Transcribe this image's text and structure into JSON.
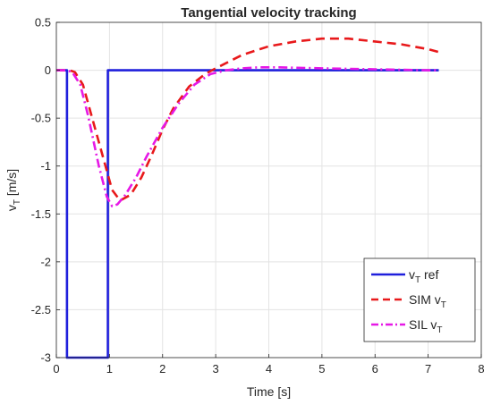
{
  "chart_data": {
    "type": "line",
    "title": "Tangential velocity tracking",
    "xlabel": "Time [s]",
    "ylabel": {
      "main": "v",
      "sub": "T",
      "unit": " [m/s]"
    },
    "xlim": [
      0,
      8
    ],
    "ylim": [
      -3,
      0.5
    ],
    "xticks": [
      0,
      1,
      2,
      3,
      4,
      5,
      6,
      7,
      8
    ],
    "yticks": [
      0.5,
      0,
      -0.5,
      -1,
      -1.5,
      -2,
      -2.5,
      -3
    ],
    "xtick_labels": [
      "0",
      "1",
      "2",
      "3",
      "4",
      "5",
      "6",
      "7",
      "8"
    ],
    "ytick_labels": [
      "0.5",
      "0",
      "-0.5",
      "-1",
      "-1.5",
      "-2",
      "-2.5",
      "-3"
    ],
    "grid": true,
    "legend_position": "bottom-right",
    "series": [
      {
        "key": "ref",
        "legend": {
          "main": "v",
          "sub": "T",
          "suffix": " ref"
        },
        "color": "#1f1fdc",
        "style": "solid",
        "x": [
          0,
          0.2,
          0.2,
          0.97,
          0.97,
          7.2
        ],
        "y": [
          0,
          0,
          -3,
          -3,
          0,
          0
        ]
      },
      {
        "key": "sim",
        "legend": {
          "main": "SIM v",
          "sub": "T",
          "suffix": ""
        },
        "color": "#e8191b",
        "style": "dashed",
        "x": [
          0,
          0.25,
          0.35,
          0.5,
          0.7,
          0.9,
          1.05,
          1.2,
          1.4,
          1.6,
          1.8,
          2.0,
          2.2,
          2.5,
          2.8,
          3.0,
          3.5,
          4.0,
          4.5,
          5.0,
          5.5,
          6.0,
          6.5,
          7.0,
          7.2
        ],
        "y": [
          0,
          0,
          -0.02,
          -0.15,
          -0.55,
          -0.95,
          -1.25,
          -1.36,
          -1.3,
          -1.12,
          -0.88,
          -0.62,
          -0.4,
          -0.17,
          -0.04,
          0.02,
          0.16,
          0.25,
          0.3,
          0.33,
          0.33,
          0.3,
          0.27,
          0.22,
          0.19
        ]
      },
      {
        "key": "sil",
        "legend": {
          "main": "SIL v",
          "sub": "T",
          "suffix": ""
        },
        "color": "#e619e6",
        "style": "dashdot",
        "x": [
          0,
          0.2,
          0.3,
          0.45,
          0.6,
          0.8,
          0.95,
          1.05,
          1.15,
          1.3,
          1.5,
          1.7,
          2.0,
          2.3,
          2.6,
          2.9,
          3.2,
          3.5,
          3.8,
          4.2,
          5.0,
          6.0,
          7.0,
          7.2
        ],
        "y": [
          0,
          0,
          -0.02,
          -0.15,
          -0.48,
          -1.0,
          -1.32,
          -1.42,
          -1.4,
          -1.3,
          -1.12,
          -0.9,
          -0.6,
          -0.35,
          -0.15,
          -0.04,
          0.0,
          0.02,
          0.03,
          0.03,
          0.02,
          0.01,
          0.0,
          0.0
        ]
      }
    ]
  }
}
